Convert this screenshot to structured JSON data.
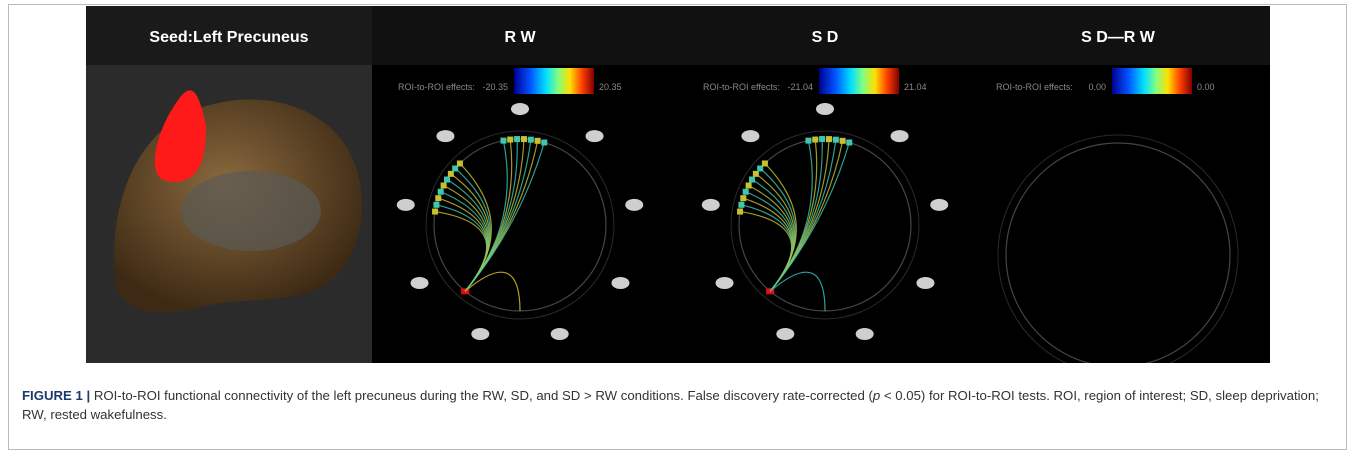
{
  "figure": {
    "seed_title": "Seed:Left Precuneus",
    "panels": [
      {
        "title": "R W",
        "colorbar_label": "ROI-to-ROI effects:",
        "min": "-20.35",
        "max": "20.35"
      },
      {
        "title": "S D",
        "colorbar_label": "ROI-to-ROI effects:",
        "min": "-21.04",
        "max": "21.04"
      },
      {
        "title": "S D—R W",
        "colorbar_label": "ROI-to-ROI effects:",
        "min": "0.00",
        "max": "0.00"
      }
    ]
  },
  "caption": {
    "label": "FIGURE 1 |",
    "text_1": " ROI-to-ROI functional connectivity of the left precuneus during the RW, SD, and SD > RW conditions. False discovery rate-corrected (",
    "italic": "p",
    "text_2": " < 0.05) for ROI-to-ROI tests. ROI, region of interest; SD, sleep deprivation; RW, rested wakefulness."
  }
}
